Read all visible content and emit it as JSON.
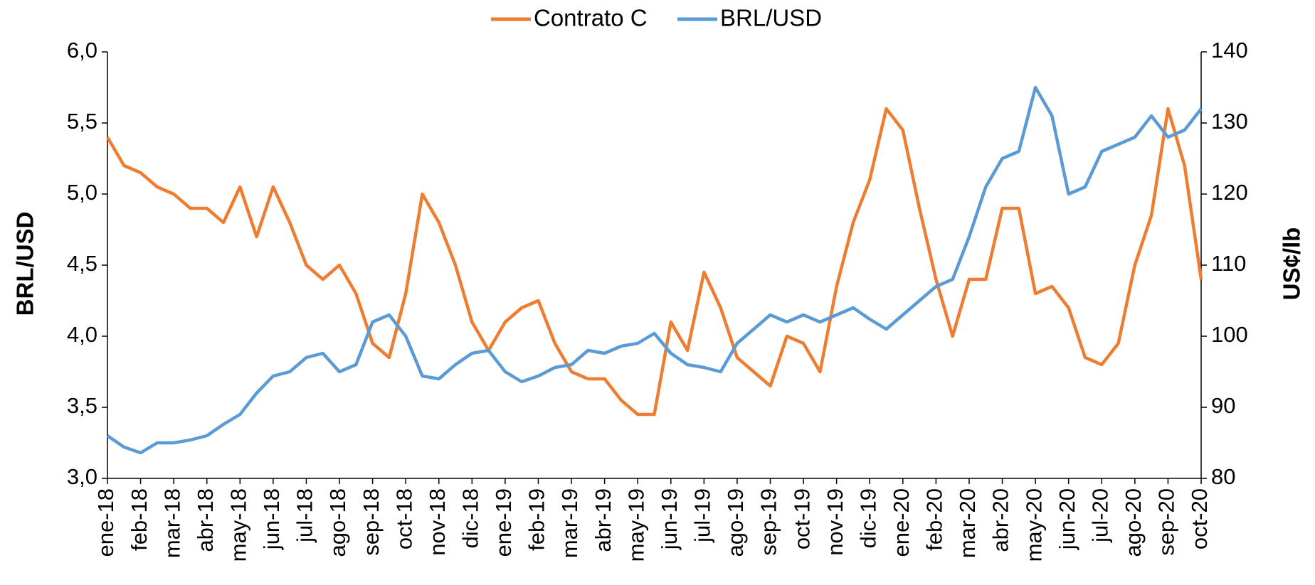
{
  "chart_data": {
    "type": "line",
    "ylabel": "BRL/USD",
    "y2label": "US¢/lb",
    "legend": "top",
    "categories": [
      "ene-18",
      null,
      "feb-18",
      null,
      "mar-18",
      null,
      "abr-18",
      null,
      "may-18",
      null,
      "jun-18",
      null,
      "jul-18",
      null,
      "ago-18",
      null,
      "sep-18",
      null,
      "oct-18",
      null,
      "nov-18",
      null,
      "dic-18",
      null,
      "ene-19",
      null,
      "feb-19",
      null,
      "mar-19",
      null,
      "abr-19",
      null,
      "may-19",
      null,
      "jun-19",
      null,
      "jul-19",
      null,
      "ago-19",
      null,
      "sep-19",
      null,
      "oct-19",
      null,
      "nov-19",
      null,
      "dic-19",
      null,
      "ene-20",
      null,
      "feb-20",
      null,
      "mar-20",
      null,
      "abr-20",
      null,
      "may-20",
      null,
      "jun-20",
      null,
      "jul-20",
      null,
      "ago-20",
      null,
      "sep-20",
      null,
      "oct-20"
    ],
    "series": [
      {
        "name": "Contrato C",
        "color": "#ed7d31",
        "axis": "y2",
        "values": [
          128,
          124,
          123,
          121,
          120,
          118,
          118,
          116,
          121,
          114,
          121,
          116,
          110,
          108,
          110,
          106,
          99,
          97,
          106,
          120,
          116,
          110,
          102,
          98,
          102,
          104,
          105,
          99,
          95,
          94,
          94,
          91,
          89,
          89,
          102,
          98,
          109,
          104,
          97,
          95,
          93,
          100,
          99,
          95,
          107,
          116,
          122,
          132,
          129,
          118,
          108,
          100,
          108,
          108,
          118,
          118,
          106,
          107,
          104,
          97,
          96,
          99,
          110,
          117,
          132,
          124,
          108
        ]
      },
      {
        "name": "BRL/USD",
        "color": "#5b9bd5",
        "values": [
          3.3,
          3.22,
          3.18,
          3.25,
          3.25,
          3.27,
          3.3,
          3.38,
          3.45,
          3.6,
          3.72,
          3.75,
          3.85,
          3.88,
          3.75,
          3.8,
          4.1,
          4.15,
          4.0,
          3.72,
          3.7,
          3.8,
          3.88,
          3.9,
          3.75,
          3.68,
          3.72,
          3.78,
          3.8,
          3.9,
          3.88,
          3.93,
          3.95,
          4.02,
          3.88,
          3.8,
          3.78,
          3.75,
          3.95,
          4.05,
          4.15,
          4.1,
          4.15,
          4.1,
          4.15,
          4.2,
          4.12,
          4.05,
          4.15,
          4.25,
          4.35,
          4.4,
          4.7,
          5.05,
          5.25,
          5.3,
          5.75,
          5.55,
          5.0,
          5.05,
          5.3,
          5.35,
          5.4,
          5.55,
          5.4,
          5.45,
          5.6
        ]
      }
    ],
    "ylim": [
      3.0,
      6.0
    ],
    "yticks": [
      {
        "value": 3.0,
        "label": "3,0"
      },
      {
        "value": 3.5,
        "label": "3,5"
      },
      {
        "value": 4.0,
        "label": "4,0"
      },
      {
        "value": 4.5,
        "label": "4,5"
      },
      {
        "value": 5.0,
        "label": "5,0"
      },
      {
        "value": 5.5,
        "label": "5,5"
      },
      {
        "value": 6.0,
        "label": "6,0"
      }
    ],
    "y2lim": [
      80,
      140
    ],
    "y2ticks": [
      80,
      90,
      100,
      110,
      120,
      130,
      140
    ]
  }
}
